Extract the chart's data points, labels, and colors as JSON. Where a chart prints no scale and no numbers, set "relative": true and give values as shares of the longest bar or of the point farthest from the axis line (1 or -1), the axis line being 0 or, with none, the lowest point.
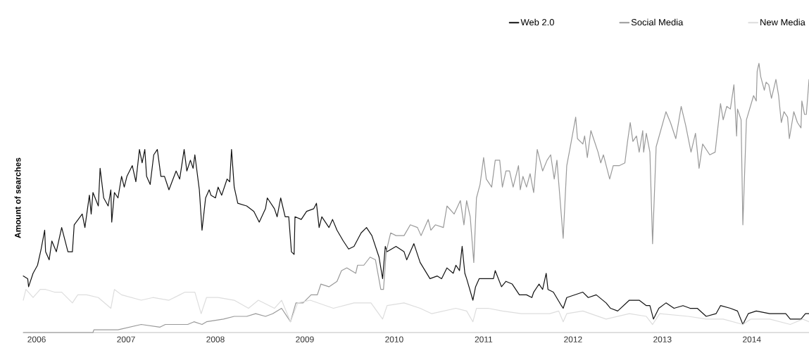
{
  "chart_data": {
    "type": "line",
    "relative": true,
    "ylabel": "Amount of searches",
    "xlim": [
      2005.85,
      2014.64
    ],
    "xticks": [
      2006,
      2007,
      2008,
      2009,
      2010,
      2011,
      2012,
      2013,
      2014
    ],
    "legend": "top right",
    "marker": "none",
    "line_style": "solid",
    "series": [
      {
        "name": "Web 2.0",
        "color": "#111111",
        "x": [
          2005.85,
          2005.9,
          2005.91,
          2005.96,
          2006.01,
          2006.05,
          2006.09,
          2006.1,
          2006.14,
          2006.17,
          2006.22,
          2006.28,
          2006.35,
          2006.4,
          2006.42,
          2006.51,
          2006.54,
          2006.59,
          2006.61,
          2006.63,
          2006.69,
          2006.71,
          2006.75,
          2006.8,
          2006.83,
          2006.84,
          2006.87,
          2006.91,
          2006.95,
          2006.98,
          2007.01,
          2007.07,
          2007.11,
          2007.15,
          2007.18,
          2007.21,
          2007.23,
          2007.27,
          2007.31,
          2007.35,
          2007.39,
          2007.43,
          2007.48,
          2007.56,
          2007.6,
          2007.65,
          2007.68,
          2007.72,
          2007.75,
          2007.77,
          2007.82,
          2007.85,
          2007.89,
          2007.93,
          2007.95,
          2008.0,
          2008.03,
          2008.07,
          2008.13,
          2008.16,
          2008.18,
          2008.21,
          2008.25,
          2008.35,
          2008.43,
          2008.49,
          2008.56,
          2008.58,
          2008.66,
          2008.69,
          2008.73,
          2008.78,
          2008.82,
          2008.85,
          2008.88,
          2008.89,
          2008.96,
          2009.02,
          2009.1,
          2009.13,
          2009.16,
          2009.19,
          2009.27,
          2009.31,
          2009.36,
          2009.43,
          2009.49,
          2009.55,
          2009.63,
          2009.69,
          2009.75,
          2009.83,
          2009.87,
          2009.9,
          2009.92,
          2010.02,
          2010.11,
          2010.14,
          2010.22,
          2010.29,
          2010.4,
          2010.48,
          2010.53,
          2010.59,
          2010.66,
          2010.69,
          2010.73,
          2010.76,
          2010.79,
          2010.81,
          2010.88,
          2010.91,
          2010.95,
          2011.03,
          2011.11,
          2011.13,
          2011.2,
          2011.25,
          2011.32,
          2011.4,
          2011.48,
          2011.54,
          2011.56,
          2011.62,
          2011.66,
          2011.7,
          2011.72,
          2011.78,
          2011.87,
          2011.89,
          2011.93,
          2012.11,
          2012.17,
          2012.26,
          2012.37,
          2012.42,
          2012.5,
          2012.63,
          2012.74,
          2012.82,
          2012.86,
          2012.9,
          2012.96,
          2013.04,
          2013.13,
          2013.23,
          2013.31,
          2013.39,
          2013.49,
          2013.6,
          2013.65,
          2013.76,
          2013.84,
          2013.9,
          2013.96,
          2014.05,
          2014.2,
          2014.38,
          2014.43,
          2014.55,
          2014.6,
          2014.64
        ],
        "values": [
          0.21,
          0.2,
          0.17,
          0.22,
          0.25,
          0.31,
          0.38,
          0.3,
          0.27,
          0.34,
          0.3,
          0.39,
          0.3,
          0.3,
          0.4,
          0.44,
          0.39,
          0.51,
          0.44,
          0.52,
          0.47,
          0.61,
          0.5,
          0.47,
          0.53,
          0.41,
          0.52,
          0.5,
          0.58,
          0.54,
          0.58,
          0.62,
          0.56,
          0.68,
          0.63,
          0.68,
          0.58,
          0.55,
          0.66,
          0.68,
          0.58,
          0.58,
          0.53,
          0.6,
          0.57,
          0.68,
          0.6,
          0.64,
          0.61,
          0.66,
          0.53,
          0.38,
          0.5,
          0.53,
          0.51,
          0.5,
          0.54,
          0.51,
          0.57,
          0.56,
          0.68,
          0.54,
          0.48,
          0.47,
          0.45,
          0.41,
          0.46,
          0.5,
          0.46,
          0.43,
          0.5,
          0.43,
          0.43,
          0.3,
          0.29,
          0.43,
          0.42,
          0.45,
          0.46,
          0.48,
          0.39,
          0.43,
          0.39,
          0.42,
          0.38,
          0.34,
          0.31,
          0.32,
          0.37,
          0.39,
          0.36,
          0.28,
          0.2,
          0.32,
          0.3,
          0.32,
          0.3,
          0.27,
          0.33,
          0.26,
          0.2,
          0.21,
          0.2,
          0.24,
          0.22,
          0.25,
          0.23,
          0.32,
          0.22,
          0.2,
          0.12,
          0.17,
          0.2,
          0.2,
          0.2,
          0.23,
          0.17,
          0.19,
          0.18,
          0.14,
          0.14,
          0.13,
          0.15,
          0.18,
          0.16,
          0.22,
          0.16,
          0.15,
          0.1,
          0.09,
          0.13,
          0.15,
          0.13,
          0.14,
          0.11,
          0.09,
          0.08,
          0.12,
          0.12,
          0.1,
          0.1,
          0.05,
          0.09,
          0.11,
          0.09,
          0.1,
          0.09,
          0.09,
          0.06,
          0.07,
          0.1,
          0.09,
          0.08,
          0.03,
          0.07,
          0.08,
          0.07,
          0.07,
          0.05,
          0.05,
          0.07,
          0.07
        ]
      },
      {
        "name": "Social Media",
        "color": "#999999",
        "x": [
          2005.85,
          2006.63,
          2006.64,
          2006.91,
          2007.17,
          2007.38,
          2007.44,
          2007.69,
          2007.76,
          2007.85,
          2007.9,
          2008.09,
          2008.21,
          2008.35,
          2008.45,
          2008.56,
          2008.64,
          2008.74,
          2008.84,
          2008.9,
          2008.98,
          2009.07,
          2009.14,
          2009.18,
          2009.27,
          2009.36,
          2009.41,
          2009.47,
          2009.57,
          2009.59,
          2009.66,
          2009.73,
          2009.79,
          2009.85,
          2009.88,
          2009.91,
          2009.96,
          2010.02,
          2010.11,
          2010.18,
          2010.26,
          2010.3,
          2010.38,
          2010.41,
          2010.46,
          2010.55,
          2010.59,
          2010.67,
          2010.74,
          2010.78,
          2010.81,
          2010.85,
          2010.89,
          2010.92,
          2010.96,
          2011.0,
          2011.03,
          2011.09,
          2011.13,
          2011.18,
          2011.21,
          2011.25,
          2011.29,
          2011.33,
          2011.39,
          2011.41,
          2011.44,
          2011.48,
          2011.52,
          2011.56,
          2011.6,
          2011.66,
          2011.71,
          2011.75,
          2011.79,
          2011.82,
          2011.89,
          2011.93,
          2011.97,
          2012.03,
          2012.05,
          2012.11,
          2012.13,
          2012.16,
          2012.2,
          2012.23,
          2012.28,
          2012.31,
          2012.34,
          2012.41,
          2012.45,
          2012.52,
          2012.58,
          2012.61,
          2012.64,
          2012.67,
          2012.71,
          2012.74,
          2012.78,
          2012.79,
          2012.82,
          2012.86,
          2012.89,
          2012.93,
          2013.04,
          2013.09,
          2013.15,
          2013.21,
          2013.26,
          2013.32,
          2013.37,
          2013.41,
          2013.45,
          2013.53,
          2013.59,
          2013.65,
          2013.68,
          2013.72,
          2013.76,
          2013.8,
          2013.83,
          2013.84,
          2013.88,
          2013.9,
          2013.94,
          2014.02,
          2014.05,
          2014.06,
          2014.08,
          2014.1,
          2014.14,
          2014.16,
          2014.19,
          2014.22,
          2014.27,
          2014.3,
          2014.33,
          2014.36,
          2014.4,
          2014.42,
          2014.47,
          2014.51,
          2014.55,
          2014.56,
          2014.59,
          2014.61,
          2014.64
        ],
        "values": [
          0,
          0,
          0.01,
          0.01,
          0.03,
          0.02,
          0.03,
          0.03,
          0.04,
          0.03,
          0.04,
          0.05,
          0.06,
          0.06,
          0.07,
          0.06,
          0.07,
          0.09,
          0.04,
          0.11,
          0.11,
          0.14,
          0.14,
          0.18,
          0.17,
          0.19,
          0.23,
          0.24,
          0.22,
          0.25,
          0.25,
          0.28,
          0.27,
          0.16,
          0.16,
          0.3,
          0.37,
          0.36,
          0.36,
          0.4,
          0.39,
          0.36,
          0.42,
          0.38,
          0.4,
          0.39,
          0.47,
          0.44,
          0.49,
          0.4,
          0.49,
          0.43,
          0.26,
          0.5,
          0.55,
          0.65,
          0.57,
          0.54,
          0.64,
          0.64,
          0.54,
          0.6,
          0.6,
          0.54,
          0.62,
          0.53,
          0.58,
          0.54,
          0.59,
          0.52,
          0.68,
          0.6,
          0.64,
          0.66,
          0.57,
          0.64,
          0.35,
          0.62,
          0.69,
          0.8,
          0.72,
          0.7,
          0.73,
          0.65,
          0.75,
          0.72,
          0.67,
          0.63,
          0.66,
          0.57,
          0.62,
          0.62,
          0.63,
          0.71,
          0.78,
          0.71,
          0.73,
          0.67,
          0.75,
          0.67,
          0.74,
          0.67,
          0.33,
          0.69,
          0.82,
          0.78,
          0.72,
          0.84,
          0.77,
          0.67,
          0.74,
          0.61,
          0.7,
          0.66,
          0.67,
          0.85,
          0.79,
          0.84,
          0.83,
          0.92,
          0.73,
          0.83,
          0.79,
          0.4,
          0.79,
          0.88,
          0.86,
          0.97,
          1.0,
          0.95,
          0.9,
          0.93,
          0.92,
          0.87,
          0.94,
          0.88,
          0.78,
          0.82,
          0.8,
          0.72,
          0.82,
          0.78,
          0.76,
          0.86,
          0.81,
          0.81,
          0.94
        ]
      },
      {
        "name": "New Media",
        "color": "#dddddd",
        "x": [
          2005.85,
          2005.88,
          2005.96,
          2006.04,
          2006.1,
          2006.2,
          2006.28,
          2006.4,
          2006.46,
          2006.56,
          2006.69,
          2006.83,
          2006.87,
          2006.95,
          2007.17,
          2007.3,
          2007.48,
          2007.66,
          2007.77,
          2007.84,
          2007.9,
          2008.03,
          2008.21,
          2008.37,
          2008.48,
          2008.66,
          2008.74,
          2008.84,
          2008.92,
          2009.06,
          2009.32,
          2009.55,
          2009.74,
          2009.87,
          2009.92,
          2010.11,
          2010.29,
          2010.42,
          2010.69,
          2010.81,
          2010.88,
          2010.92,
          2011.05,
          2011.21,
          2011.42,
          2011.74,
          2011.84,
          2011.89,
          2011.93,
          2012.11,
          2012.37,
          2012.63,
          2012.82,
          2012.89,
          2012.97,
          2013.29,
          2013.49,
          2013.68,
          2013.9,
          2013.99,
          2014.2,
          2014.43,
          2014.57,
          2014.64
        ],
        "values": [
          0.12,
          0.16,
          0.13,
          0.16,
          0.16,
          0.15,
          0.15,
          0.11,
          0.14,
          0.14,
          0.13,
          0.09,
          0.16,
          0.14,
          0.12,
          0.13,
          0.12,
          0.15,
          0.15,
          0.07,
          0.13,
          0.13,
          0.12,
          0.09,
          0.12,
          0.09,
          0.12,
          0.04,
          0.11,
          0.12,
          0.09,
          0.11,
          0.11,
          0.05,
          0.1,
          0.11,
          0.09,
          0.07,
          0.09,
          0.08,
          0.04,
          0.09,
          0.09,
          0.08,
          0.07,
          0.07,
          0.08,
          0.04,
          0.07,
          0.08,
          0.05,
          0.07,
          0.06,
          0.03,
          0.07,
          0.06,
          0.05,
          0.05,
          0.03,
          0.05,
          0.05,
          0.03,
          0.05,
          0.04
        ]
      }
    ]
  }
}
